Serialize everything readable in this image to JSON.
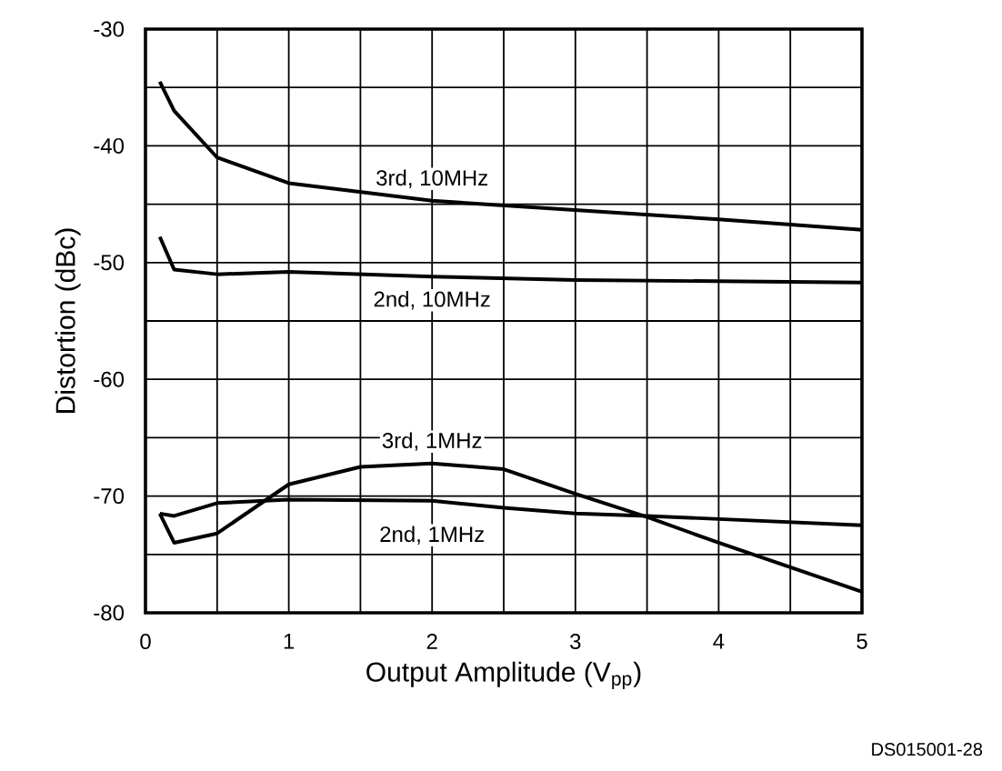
{
  "chart_data": {
    "type": "line",
    "xlabel": "Output Amplitude (V$_{pp}$)",
    "ylabel": "Distortion (dBc)",
    "xlim": [
      0,
      5
    ],
    "ylim": [
      -80,
      -30
    ],
    "xticks": [
      0,
      {
        "value": 0.5,
        "label": null
      },
      1,
      {
        "value": 1.5,
        "label": null
      },
      2,
      {
        "value": 2.5,
        "label": null
      },
      3,
      {
        "value": 3.5,
        "label": null
      },
      4,
      {
        "value": 4.5,
        "label": null
      },
      5
    ],
    "yticks": [
      -80,
      {
        "value": -75,
        "label": null
      },
      -70,
      {
        "value": -65,
        "label": null
      },
      -60,
      {
        "value": -55,
        "label": null
      },
      -50,
      {
        "value": -45,
        "label": null
      },
      -40,
      {
        "value": -35,
        "label": null
      },
      -30
    ],
    "grid": true,
    "legend": false,
    "marker": "none",
    "line_style": "solid",
    "series": [
      {
        "name": "3rd, 10MHz",
        "color": "#000000",
        "x": [
          0.1,
          0.2,
          0.5,
          1,
          2,
          3,
          4,
          5
        ],
        "values": [
          -34.5,
          -37,
          -41,
          -43.2,
          -44.7,
          -45.5,
          -46.3,
          -47.2
        ]
      },
      {
        "name": "2nd, 10MHz",
        "color": "#000000",
        "x": [
          0.1,
          0.2,
          0.5,
          1,
          2,
          3,
          5
        ],
        "values": [
          -47.8,
          -50.6,
          -51,
          -50.8,
          -51.2,
          -51.5,
          -51.7
        ]
      },
      {
        "name": "3rd, 1MHz",
        "color": "#000000",
        "x": [
          0.1,
          0.2,
          0.5,
          1,
          1.5,
          2,
          2.5,
          3,
          3.5,
          4,
          5
        ],
        "values": [
          -71.5,
          -74,
          -73.2,
          -69,
          -67.5,
          -67.2,
          -67.7,
          -69.8,
          -71.8,
          -74,
          -78.2
        ]
      },
      {
        "name": "2nd, 1MHz",
        "color": "#000000",
        "x": [
          0.1,
          0.2,
          0.5,
          1,
          2,
          2.5,
          3,
          3.5,
          5
        ],
        "values": [
          -71.5,
          -71.7,
          -70.6,
          -70.3,
          -70.4,
          -71,
          -71.5,
          -71.7,
          -72.5
        ]
      }
    ],
    "annotations": [
      "DS015001-28"
    ]
  }
}
